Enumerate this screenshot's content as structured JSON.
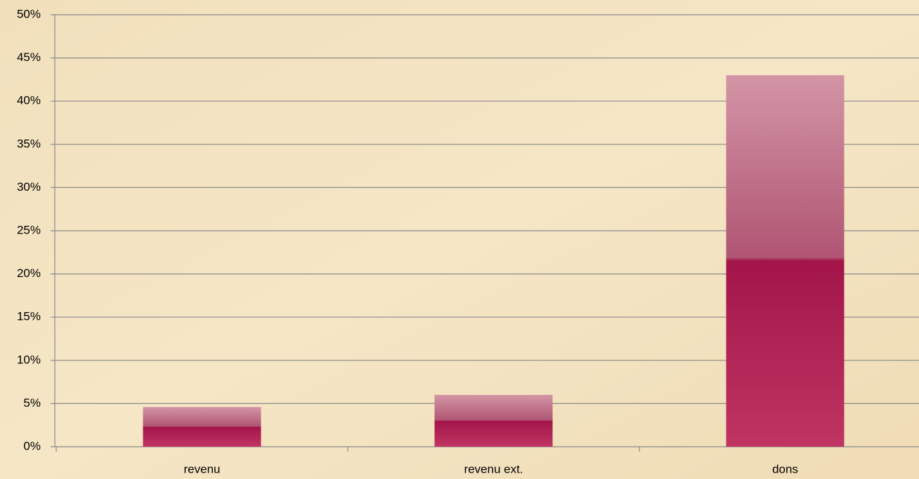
{
  "chart_data": {
    "type": "bar",
    "categories": [
      "revenu",
      "revenu ext.",
      "dons"
    ],
    "values": [
      4.6,
      6.0,
      43.0
    ],
    "color": "#a3154a",
    "ylim": [
      0,
      50
    ],
    "yticks": [
      {
        "value": 0,
        "label": "0%"
      },
      {
        "value": 5,
        "label": "5%"
      },
      {
        "value": 10,
        "label": "10%"
      },
      {
        "value": 15,
        "label": "15%"
      },
      {
        "value": 20,
        "label": "20%"
      },
      {
        "value": 25,
        "label": "25%"
      },
      {
        "value": 30,
        "label": "30%"
      },
      {
        "value": 35,
        "label": "35%"
      },
      {
        "value": 40,
        "label": "40%"
      },
      {
        "value": 45,
        "label": "45%"
      },
      {
        "value": 50,
        "label": "50%"
      }
    ],
    "grid": true
  }
}
